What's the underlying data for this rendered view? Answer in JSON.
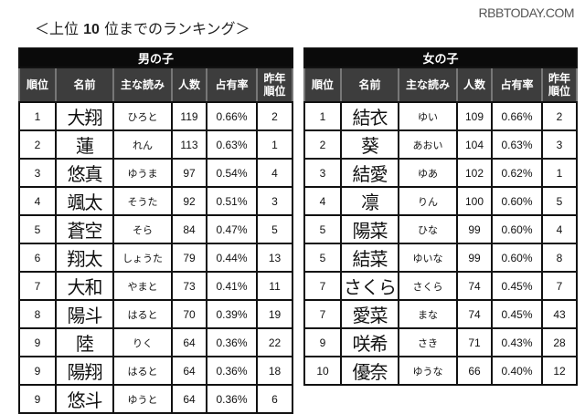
{
  "header": {
    "title_prefix": "＜上位",
    "title_number": "10",
    "title_suffix": "位までのランキング＞",
    "watermark": "RBBTODAY.COM"
  },
  "columns": [
    "順位",
    "名前",
    "主な読み",
    "人数",
    "占有率",
    "昨年順位"
  ],
  "column_prev_rank_line1": "昨年",
  "column_prev_rank_line2": "順位",
  "boys": {
    "title": "男の子",
    "rows": [
      {
        "rank": "1",
        "name": "大翔",
        "reading": "ひろと",
        "count": "119",
        "share": "0.66%",
        "prev_rank": "2"
      },
      {
        "rank": "2",
        "name": "蓮",
        "reading": "れん",
        "count": "113",
        "share": "0.63%",
        "prev_rank": "1"
      },
      {
        "rank": "3",
        "name": "悠真",
        "reading": "ゆうま",
        "count": "97",
        "share": "0.54%",
        "prev_rank": "4"
      },
      {
        "rank": "4",
        "name": "颯太",
        "reading": "そうた",
        "count": "92",
        "share": "0.51%",
        "prev_rank": "3"
      },
      {
        "rank": "5",
        "name": "蒼空",
        "reading": "そら",
        "count": "84",
        "share": "0.47%",
        "prev_rank": "5"
      },
      {
        "rank": "6",
        "name": "翔太",
        "reading": "しょうた",
        "count": "79",
        "share": "0.44%",
        "prev_rank": "13"
      },
      {
        "rank": "7",
        "name": "大和",
        "reading": "やまと",
        "count": "73",
        "share": "0.41%",
        "prev_rank": "11"
      },
      {
        "rank": "8",
        "name": "陽斗",
        "reading": "はると",
        "count": "70",
        "share": "0.39%",
        "prev_rank": "19"
      },
      {
        "rank": "9",
        "name": "陸",
        "reading": "りく",
        "count": "64",
        "share": "0.36%",
        "prev_rank": "22"
      },
      {
        "rank": "9",
        "name": "陽翔",
        "reading": "はると",
        "count": "64",
        "share": "0.36%",
        "prev_rank": "18"
      },
      {
        "rank": "9",
        "name": "悠斗",
        "reading": "ゆうと",
        "count": "64",
        "share": "0.36%",
        "prev_rank": "6"
      }
    ]
  },
  "girls": {
    "title": "女の子",
    "rows": [
      {
        "rank": "1",
        "name": "結衣",
        "reading": "ゆい",
        "count": "109",
        "share": "0.66%",
        "prev_rank": "2"
      },
      {
        "rank": "2",
        "name": "葵",
        "reading": "あおい",
        "count": "104",
        "share": "0.63%",
        "prev_rank": "3"
      },
      {
        "rank": "3",
        "name": "結愛",
        "reading": "ゆあ",
        "count": "102",
        "share": "0.62%",
        "prev_rank": "1"
      },
      {
        "rank": "4",
        "name": "凛",
        "reading": "りん",
        "count": "100",
        "share": "0.60%",
        "prev_rank": "5"
      },
      {
        "rank": "5",
        "name": "陽菜",
        "reading": "ひな",
        "count": "99",
        "share": "0.60%",
        "prev_rank": "4"
      },
      {
        "rank": "5",
        "name": "結菜",
        "reading": "ゆいな",
        "count": "99",
        "share": "0.60%",
        "prev_rank": "8"
      },
      {
        "rank": "7",
        "name": "さくら",
        "reading": "さくら",
        "count": "74",
        "share": "0.45%",
        "prev_rank": "7"
      },
      {
        "rank": "7",
        "name": "愛菜",
        "reading": "まな",
        "count": "74",
        "share": "0.45%",
        "prev_rank": "43"
      },
      {
        "rank": "9",
        "name": "咲希",
        "reading": "さき",
        "count": "71",
        "share": "0.43%",
        "prev_rank": "28"
      },
      {
        "rank": "10",
        "name": "優奈",
        "reading": "ゆうな",
        "count": "66",
        "share": "0.40%",
        "prev_rank": "12"
      }
    ]
  }
}
